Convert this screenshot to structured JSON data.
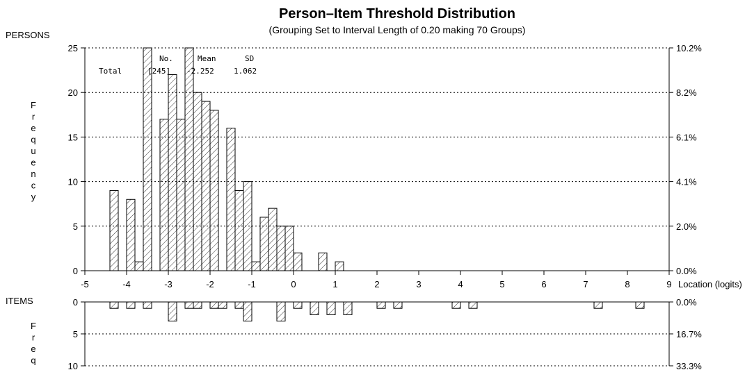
{
  "chart_data": {
    "type": "bar",
    "title": "Person–Item Threshold Distribution",
    "subtitle": "(Grouping Set to Interval Length of  0.20  making 70  Groups)",
    "x_axis": {
      "label": "Location (logits)",
      "range": [
        -5,
        9
      ],
      "ticks": [
        "-5",
        "-4",
        "-3",
        "-2",
        "-1",
        "0",
        "1",
        "2",
        "3",
        "4",
        "5",
        "6",
        "7",
        "8",
        "9"
      ],
      "bin_width": 0.2
    },
    "persons": {
      "panel_label": "PERSONS",
      "ylabel": "Frequency",
      "ylim": [
        0,
        25
      ],
      "y_ticks": [
        "0",
        "5",
        "10",
        "15",
        "20",
        "25"
      ],
      "right_ticks": [
        "0.0%",
        "2.0%",
        "4.1%",
        "6.1%",
        "8.2%",
        "10.2%"
      ],
      "stats": {
        "header": [
          "No.",
          "Mean",
          "SD"
        ],
        "row_label": "Total",
        "values": [
          "[245]",
          "-2.252",
          "1.062"
        ]
      },
      "bins": [
        {
          "x": -4.3,
          "count": 9
        },
        {
          "x": -3.9,
          "count": 8
        },
        {
          "x": -3.7,
          "count": 1
        },
        {
          "x": -3.5,
          "count": 25
        },
        {
          "x": -3.1,
          "count": 17
        },
        {
          "x": -2.9,
          "count": 22
        },
        {
          "x": -2.7,
          "count": 17
        },
        {
          "x": -2.5,
          "count": 25
        },
        {
          "x": -2.3,
          "count": 20
        },
        {
          "x": -2.1,
          "count": 19
        },
        {
          "x": -1.9,
          "count": 18
        },
        {
          "x": -1.5,
          "count": 16
        },
        {
          "x": -1.3,
          "count": 9
        },
        {
          "x": -1.1,
          "count": 10
        },
        {
          "x": -0.9,
          "count": 1
        },
        {
          "x": -0.7,
          "count": 6
        },
        {
          "x": -0.5,
          "count": 7
        },
        {
          "x": -0.3,
          "count": 5
        },
        {
          "x": -0.1,
          "count": 5
        },
        {
          "x": 0.1,
          "count": 2
        },
        {
          "x": 0.7,
          "count": 2
        },
        {
          "x": 1.1,
          "count": 1
        }
      ]
    },
    "items": {
      "panel_label": "ITEMS",
      "ylabel": "Freq",
      "ylim": [
        0,
        10
      ],
      "y_ticks": [
        "0",
        "5",
        "10"
      ],
      "right_ticks": [
        "0.0%",
        "16.7%",
        "33.3%"
      ],
      "bins": [
        {
          "x": -4.3,
          "count": 1
        },
        {
          "x": -3.9,
          "count": 1
        },
        {
          "x": -3.5,
          "count": 1
        },
        {
          "x": -2.9,
          "count": 3
        },
        {
          "x": -2.5,
          "count": 1
        },
        {
          "x": -2.3,
          "count": 1
        },
        {
          "x": -1.9,
          "count": 1
        },
        {
          "x": -1.7,
          "count": 1
        },
        {
          "x": -1.3,
          "count": 1
        },
        {
          "x": -1.1,
          "count": 3
        },
        {
          "x": -0.3,
          "count": 3
        },
        {
          "x": 0.1,
          "count": 1
        },
        {
          "x": 0.5,
          "count": 2
        },
        {
          "x": 0.9,
          "count": 2
        },
        {
          "x": 1.3,
          "count": 2
        },
        {
          "x": 2.1,
          "count": 1
        },
        {
          "x": 2.5,
          "count": 1
        },
        {
          "x": 3.9,
          "count": 1
        },
        {
          "x": 4.3,
          "count": 1
        },
        {
          "x": 7.3,
          "count": 1
        },
        {
          "x": 8.3,
          "count": 1
        }
      ]
    },
    "grid": "dotted horizontal",
    "bar_fill": "diagonal hatch",
    "colors": {
      "bar_stroke": "#000000",
      "bar_fill": "#ffffff",
      "hatch": "#333333"
    }
  }
}
